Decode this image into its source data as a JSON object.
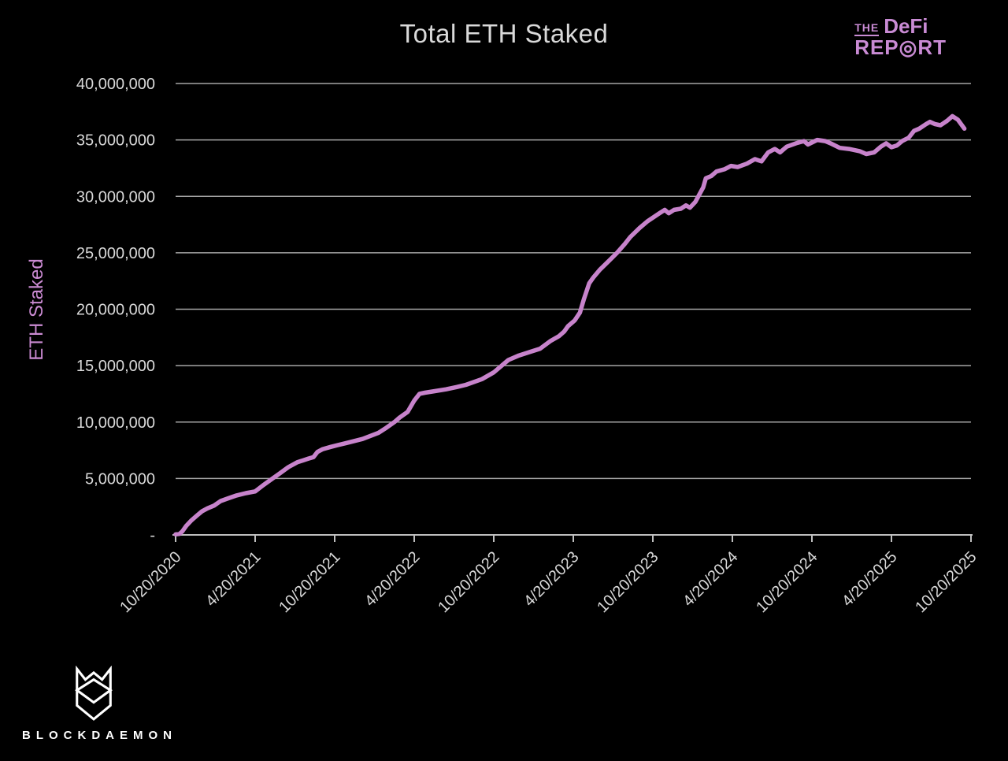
{
  "page": {
    "background": "#000000"
  },
  "title": "Total ETH Staked",
  "brand": {
    "defi_report": {
      "the": "THE",
      "defi": "DeFi",
      "report": "REP◎RT",
      "color": "#c98bd4"
    },
    "blockdaemon": {
      "label": "BLOCKDAEMON",
      "icon": "blockdaemon-shield-icon",
      "color": "#ffffff"
    }
  },
  "chart_data": {
    "type": "line",
    "title": "Total ETH Staked",
    "xlabel": "",
    "ylabel": "ETH Staked",
    "legend": false,
    "grid": true,
    "background": "#000000",
    "line_color": "#c783cb",
    "grid_color": "#a6a6a6",
    "axis_color": "#bfbfbf",
    "tick_label_color": "#d9d9d9",
    "ylim": [
      0,
      40000000
    ],
    "ytick_step": 5000000,
    "y_tick_labels": [
      "-",
      "5,000,000",
      "10,000,000",
      "15,000,000",
      "20,000,000",
      "25,000,000",
      "30,000,000",
      "35,000,000",
      "40,000,000"
    ],
    "x_range": [
      "10/20/2020",
      "10/20/2025"
    ],
    "x_tick_interval_months": 6,
    "x_tick_labels": [
      "10/20/2020",
      "4/20/2021",
      "10/20/2021",
      "4/20/2022",
      "10/20/2022",
      "4/20/2023",
      "10/20/2023",
      "4/20/2024",
      "10/20/2024",
      "4/20/2025",
      "10/20/2025"
    ],
    "series": [
      {
        "name": "Total ETH Staked",
        "x_unit": "months_since_2020-10-20",
        "value_unit": "millions_of_ETH",
        "points": [
          [
            0,
            0.05
          ],
          [
            0.3,
            0.1
          ],
          [
            0.5,
            0.3
          ],
          [
            0.8,
            0.8
          ],
          [
            1.2,
            1.3
          ],
          [
            1.6,
            1.7
          ],
          [
            2,
            2.1
          ],
          [
            2.4,
            2.35
          ],
          [
            2.9,
            2.6
          ],
          [
            3.4,
            3.0
          ],
          [
            4,
            3.25
          ],
          [
            4.6,
            3.5
          ],
          [
            5.3,
            3.7
          ],
          [
            6,
            3.85
          ],
          [
            6.6,
            4.4
          ],
          [
            7.2,
            4.9
          ],
          [
            7.8,
            5.4
          ],
          [
            8.5,
            6.0
          ],
          [
            9.2,
            6.45
          ],
          [
            9.6,
            6.6
          ],
          [
            10,
            6.75
          ],
          [
            10.4,
            6.9
          ],
          [
            10.7,
            7.35
          ],
          [
            11.1,
            7.6
          ],
          [
            11.7,
            7.8
          ],
          [
            12.2,
            7.95
          ],
          [
            12.9,
            8.15
          ],
          [
            14.1,
            8.5
          ],
          [
            15.3,
            9.05
          ],
          [
            15.9,
            9.5
          ],
          [
            16.5,
            10.0
          ],
          [
            16.9,
            10.4
          ],
          [
            17.5,
            10.9
          ],
          [
            18,
            11.9
          ],
          [
            18.4,
            12.5
          ],
          [
            18.8,
            12.6
          ],
          [
            19.6,
            12.75
          ],
          [
            20.4,
            12.9
          ],
          [
            21.2,
            13.1
          ],
          [
            21.9,
            13.3
          ],
          [
            23.1,
            13.8
          ],
          [
            24,
            14.4
          ],
          [
            25.1,
            15.5
          ],
          [
            25.9,
            15.9
          ],
          [
            26.7,
            16.2
          ],
          [
            27.5,
            16.5
          ],
          [
            28.3,
            17.2
          ],
          [
            28.9,
            17.6
          ],
          [
            29.3,
            18.0
          ],
          [
            29.6,
            18.5
          ],
          [
            30.1,
            19.0
          ],
          [
            30.5,
            19.7
          ],
          [
            30.8,
            20.9
          ],
          [
            31.2,
            22.3
          ],
          [
            31.5,
            22.8
          ],
          [
            32,
            23.5
          ],
          [
            32.7,
            24.3
          ],
          [
            33.3,
            25.0
          ],
          [
            33.9,
            25.8
          ],
          [
            34.3,
            26.4
          ],
          [
            35,
            27.2
          ],
          [
            35.6,
            27.8
          ],
          [
            36.5,
            28.5
          ],
          [
            36.9,
            28.8
          ],
          [
            37.2,
            28.5
          ],
          [
            37.6,
            28.8
          ],
          [
            38.1,
            28.9
          ],
          [
            38.5,
            29.2
          ],
          [
            38.8,
            29.0
          ],
          [
            39.2,
            29.5
          ],
          [
            39.8,
            30.8
          ],
          [
            40,
            31.6
          ],
          [
            40.4,
            31.8
          ],
          [
            40.8,
            32.2
          ],
          [
            41.4,
            32.4
          ],
          [
            41.9,
            32.7
          ],
          [
            42.4,
            32.6
          ],
          [
            43.1,
            32.9
          ],
          [
            43.7,
            33.3
          ],
          [
            44.2,
            33.1
          ],
          [
            44.7,
            33.9
          ],
          [
            45.2,
            34.2
          ],
          [
            45.6,
            33.9
          ],
          [
            46.1,
            34.4
          ],
          [
            46.8,
            34.7
          ],
          [
            47.4,
            34.9
          ],
          [
            47.7,
            34.6
          ],
          [
            48.4,
            35.0
          ],
          [
            49,
            34.9
          ],
          [
            49.4,
            34.7
          ],
          [
            50.1,
            34.3
          ],
          [
            50.8,
            34.2
          ],
          [
            51.6,
            34.0
          ],
          [
            52.1,
            33.75
          ],
          [
            52.7,
            33.9
          ],
          [
            53.2,
            34.4
          ],
          [
            53.6,
            34.7
          ],
          [
            54,
            34.35
          ],
          [
            54.4,
            34.5
          ],
          [
            54.8,
            34.9
          ],
          [
            55.3,
            35.2
          ],
          [
            55.7,
            35.8
          ],
          [
            56.1,
            36.0
          ],
          [
            56.6,
            36.4
          ],
          [
            56.9,
            36.6
          ],
          [
            57.3,
            36.4
          ],
          [
            57.7,
            36.3
          ],
          [
            58.2,
            36.7
          ],
          [
            58.6,
            37.1
          ],
          [
            59,
            36.8
          ],
          [
            59.5,
            36.0
          ]
        ]
      }
    ]
  }
}
